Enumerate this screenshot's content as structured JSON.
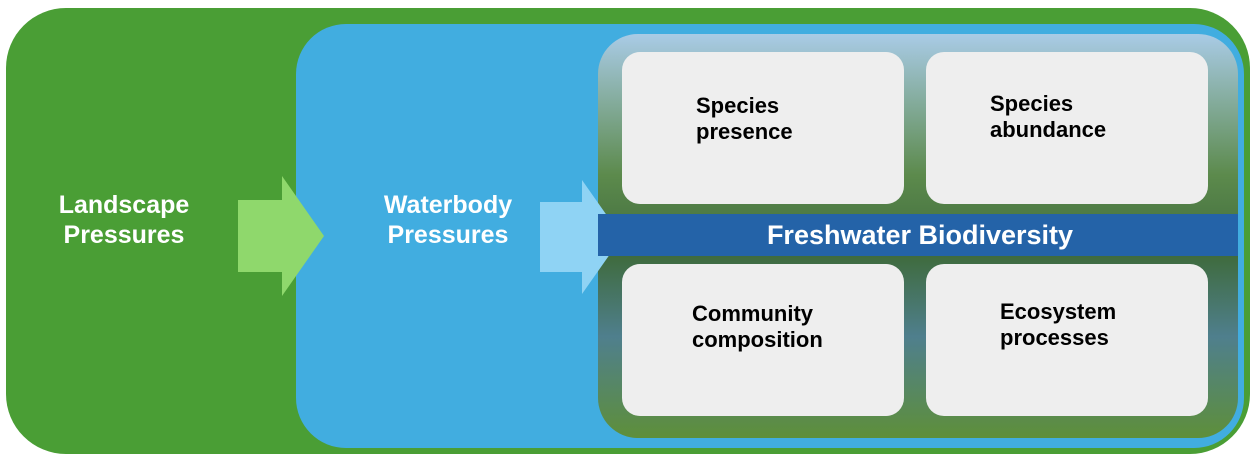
{
  "outer": {
    "label": "Landscape\nPressures"
  },
  "middle": {
    "label": "Waterbody\nPressures"
  },
  "inner": {
    "band": "Freshwater Biodiversity",
    "boxes": [
      "Species\npresence",
      "Species\nabundance",
      "Community\ncomposition",
      "Ecosystem\nprocesses"
    ]
  }
}
